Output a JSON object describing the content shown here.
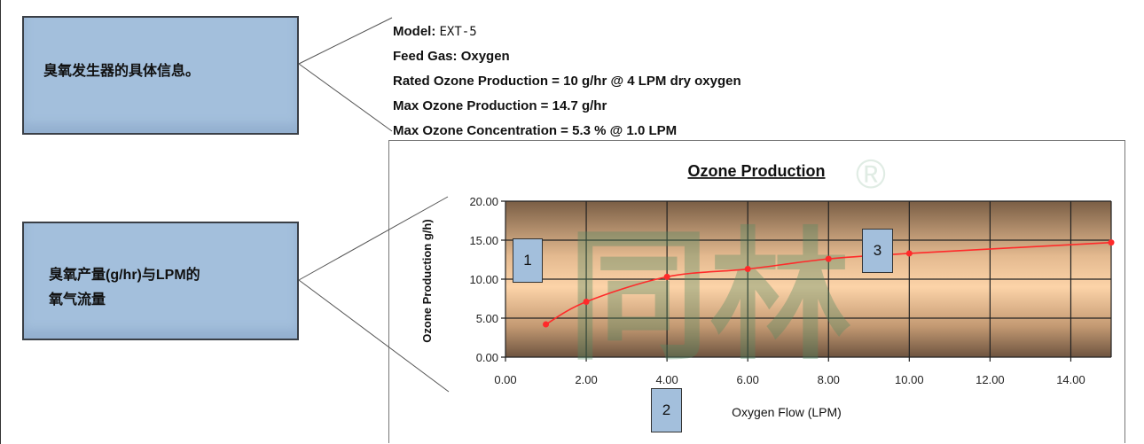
{
  "callouts": {
    "info_box": "臭氧发生器的具体信息。",
    "chart_box_line1": "臭氧产量(g/hr)与LPM的",
    "chart_box_line2": "氧气流量"
  },
  "specs": {
    "model_label": "Model:",
    "model_value": "EXT-5",
    "feed_gas": "Feed Gas: Oxygen",
    "rated": "Rated Ozone Production = 10 g/hr @ 4 LPM dry oxygen",
    "max_production": "Max Ozone Production = 14.7 g/hr",
    "max_concentration": "Max Ozone Concentration = 5.3 % @ 1.0 LPM"
  },
  "markers": [
    "1",
    "2",
    "3"
  ],
  "watermark": {
    "text": "同林",
    "mark": "®"
  },
  "chart_data": {
    "type": "line",
    "title": "Ozone Production",
    "xlabel": "Oxygen Flow (LPM)",
    "ylabel": "Ozone Production g/h)",
    "x": [
      1,
      2,
      4,
      6,
      8,
      10,
      15
    ],
    "values": [
      4.2,
      7.1,
      10.3,
      11.3,
      12.6,
      13.3,
      14.7
    ],
    "xlim": [
      0,
      15
    ],
    "ylim": [
      0,
      20
    ],
    "xticks": [
      "0.00",
      "2.00",
      "4.00",
      "6.00",
      "8.00",
      "10.00",
      "12.00",
      "14.00"
    ],
    "yticks": [
      "0.00",
      "5.00",
      "10.00",
      "15.00",
      "20.00"
    ],
    "grid": true,
    "line_color": "#ff2a2a"
  }
}
